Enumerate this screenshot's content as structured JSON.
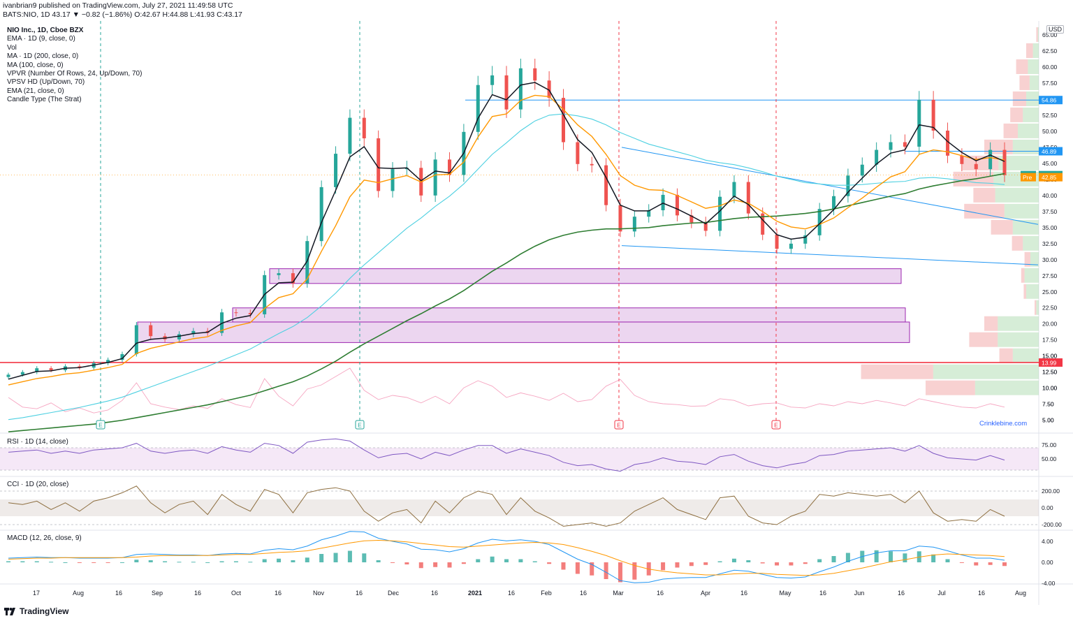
{
  "header": {
    "line1": "ivanbrian9 published on TradingView.com, July 27, 2021 11:49:58 UTC",
    "line2": "BATS:NIO, 1D  43.17 ▼ −0.82 (−1.86%) O:42.67 H:44.88 L:41.93 C:43.17"
  },
  "legend": [
    "NIO Inc., 1D, Cboe BZX",
    "EMA · 1D (9, close, 0)",
    "Vol",
    "MA · 1D (200, close, 0)",
    "MA (100, close, 0)",
    "VPVR (Number Of Rows, 24, Up/Down, 70)",
    "VPSV HD (Up/Down, 70)",
    "EMA (21, close, 0)",
    "Candle Type (The Strat)"
  ],
  "currency": "USD",
  "watermark": "Crinklebine.com",
  "footer": {
    "brand": "TradingView"
  },
  "panes": {
    "rsi": "RSI · 1D (14, close)",
    "cci": "CCI · 1D (20, close)",
    "macd": "MACD (12, 26, close, 9)"
  },
  "chart_data": {
    "type": "line",
    "symbol": "NIO",
    "price_axis": {
      "ticks": [
        "65.00",
        "62.50",
        "60.00",
        "57.50",
        "55.00",
        "52.50",
        "50.00",
        "47.50",
        "45.00",
        "42.50",
        "40.00",
        "37.50",
        "35.00",
        "32.50",
        "30.00",
        "27.50",
        "25.00",
        "22.50",
        "20.00",
        "17.50",
        "15.00",
        "12.50",
        "10.00",
        "7.50",
        "5.00"
      ],
      "badges": [
        {
          "label": "54.86",
          "value": 54.86,
          "color": "#2196f3"
        },
        {
          "label": "46.89",
          "value": 46.89,
          "color": "#2196f3"
        },
        {
          "label": "NIO",
          "value": 43.17,
          "color": "#26a69a",
          "text": "43.17"
        },
        {
          "label": "Pre",
          "value": 42.85,
          "color": "#ff9800",
          "text": "42.85"
        },
        {
          "label": "13.99",
          "value": 13.99,
          "color": "#f23645"
        }
      ]
    },
    "time_axis": [
      "17",
      "Aug",
      "16",
      "Sep",
      "16",
      "Oct",
      "16",
      "Nov",
      "16",
      "Dec",
      "16",
      "2021",
      "16",
      "Feb",
      "16",
      "Mar",
      "16",
      "Apr",
      "16",
      "May",
      "16",
      "Jun",
      "16",
      "Jul",
      "16",
      "Aug"
    ],
    "price_close": [
      12.1,
      12.5,
      13.1,
      12.8,
      13.4,
      13.2,
      13.9,
      14.4,
      15.3,
      19.8,
      18.1,
      17.6,
      18.4,
      18.9,
      18.6,
      21.8,
      21.7,
      21.5,
      27.6,
      27.9,
      26.3,
      32.9,
      41.3,
      46.5,
      52.1,
      48.9,
      40.7,
      44.1,
      44.3,
      40.0,
      45.6,
      43.2,
      49.9,
      57.2,
      58.7,
      53.4,
      59.8,
      57.9,
      55.2,
      48.3,
      44.9,
      44.7,
      38.5,
      34.4,
      36.7,
      37.7,
      40.1,
      36.9,
      35.8,
      34.5,
      39.8,
      42.1,
      37.2,
      33.9,
      31.7,
      32.5,
      33.8,
      37.9,
      39.9,
      43.1,
      44.8,
      47.1,
      48.3,
      47.6,
      54.9,
      50.1,
      46.2,
      44.9,
      44.1,
      47.1,
      43.17
    ],
    "ema9": [
      11.4,
      12.0,
      12.6,
      12.7,
      13.1,
      13.2,
      13.6,
      14.0,
      14.6,
      17.0,
      17.6,
      17.8,
      18.1,
      18.5,
      18.7,
      20.1,
      20.9,
      21.3,
      24.6,
      26.4,
      26.5,
      29.8,
      35.8,
      40.8,
      46.0,
      47.6,
      44.3,
      44.2,
      44.3,
      42.3,
      43.8,
      43.5,
      46.6,
      52.0,
      55.7,
      54.9,
      57.2,
      57.6,
      56.4,
      52.6,
      48.7,
      46.7,
      42.8,
      38.5,
      37.6,
      37.6,
      38.8,
      37.9,
      36.8,
      35.6,
      37.6,
      39.9,
      38.6,
      36.2,
      33.9,
      33.2,
      33.5,
      35.6,
      37.8,
      40.5,
      42.7,
      44.9,
      46.6,
      47.1,
      51.0,
      50.6,
      48.4,
      46.7,
      45.4,
      46.3,
      45.3
    ],
    "ema21": [
      10.5,
      11.0,
      11.5,
      11.8,
      12.2,
      12.4,
      12.8,
      13.2,
      13.7,
      15.4,
      16.2,
      16.7,
      17.2,
      17.7,
      18.0,
      19.0,
      19.7,
      20.2,
      22.4,
      24.1,
      24.7,
      27.0,
      31.3,
      35.3,
      39.8,
      42.4,
      42.0,
      42.6,
      43.1,
      42.1,
      43.2,
      43.3,
      45.2,
      49.1,
      52.3,
      52.7,
      54.8,
      55.6,
      55.4,
      53.4,
      51.0,
      49.2,
      46.4,
      43.1,
      41.6,
      40.9,
      40.8,
      40.0,
      39.0,
      38.0,
      38.4,
      39.3,
      38.8,
      37.5,
      36.0,
      35.1,
      34.8,
      35.5,
      36.5,
      38.1,
      39.6,
      41.3,
      42.9,
      43.7,
      46.4,
      47.1,
      46.8,
      46.2,
      45.6,
      45.9,
      45.5
    ],
    "ma100": [
      5.1,
      5.4,
      5.8,
      6.2,
      6.6,
      7.0,
      7.5,
      8.0,
      8.6,
      9.4,
      10.2,
      11.0,
      11.8,
      12.6,
      13.4,
      14.3,
      15.2,
      16.1,
      17.3,
      18.5,
      19.6,
      21.0,
      22.8,
      24.8,
      27.1,
      29.2,
      31.1,
      33.0,
      34.9,
      36.5,
      38.3,
      39.9,
      41.8,
      44.1,
      46.4,
      48.2,
      50.1,
      51.6,
      52.5,
      52.7,
      52.4,
      51.9,
      51.0,
      49.8,
      48.9,
      48.0,
      47.4,
      46.8,
      46.2,
      45.5,
      45.1,
      44.8,
      44.3,
      43.7,
      43.0,
      42.5,
      42.0,
      41.8,
      41.6,
      41.6,
      41.7,
      41.9,
      42.1,
      42.2,
      42.7,
      42.8,
      42.6,
      42.3,
      42.0,
      41.9,
      41.7
    ],
    "ma200": [
      3.2,
      3.4,
      3.6,
      3.8,
      4.0,
      4.2,
      4.4,
      4.7,
      5.0,
      5.4,
      5.8,
      6.2,
      6.6,
      7.0,
      7.4,
      7.9,
      8.4,
      8.9,
      9.6,
      10.3,
      11.0,
      11.9,
      13.0,
      14.2,
      15.6,
      16.9,
      18.1,
      19.3,
      20.5,
      21.6,
      22.8,
      23.9,
      25.2,
      26.7,
      28.2,
      29.5,
      30.9,
      32.1,
      33.1,
      33.8,
      34.3,
      34.6,
      34.8,
      34.8,
      34.9,
      35.0,
      35.3,
      35.5,
      35.7,
      35.8,
      36.1,
      36.4,
      36.6,
      36.7,
      36.8,
      37.0,
      37.2,
      37.5,
      37.9,
      38.4,
      38.9,
      39.4,
      39.9,
      40.3,
      41.0,
      41.5,
      41.9,
      42.3,
      42.6,
      43.0,
      43.4
    ],
    "rsi_axis": [
      "75.00",
      "50.00"
    ],
    "rsi": [
      62,
      64,
      66,
      60,
      64,
      60,
      66,
      68,
      70,
      78,
      64,
      60,
      64,
      66,
      60,
      72,
      66,
      62,
      78,
      74,
      60,
      80,
      84,
      86,
      82,
      66,
      52,
      58,
      60,
      50,
      62,
      56,
      66,
      74,
      74,
      60,
      68,
      62,
      56,
      44,
      38,
      40,
      32,
      28,
      40,
      44,
      52,
      46,
      44,
      40,
      54,
      58,
      46,
      38,
      34,
      40,
      44,
      56,
      58,
      64,
      66,
      68,
      70,
      64,
      74,
      60,
      52,
      50,
      48,
      56,
      48
    ],
    "cci_axis": [
      "200.00",
      "0.00",
      "-200.00"
    ],
    "cci": [
      60,
      40,
      80,
      -20,
      60,
      -40,
      80,
      120,
      180,
      260,
      60,
      -60,
      40,
      80,
      -80,
      160,
      40,
      -40,
      220,
      160,
      -60,
      180,
      220,
      240,
      200,
      -40,
      -160,
      -60,
      -20,
      -180,
      80,
      -60,
      120,
      200,
      160,
      -80,
      120,
      -40,
      -120,
      -220,
      -200,
      -180,
      -220,
      -180,
      -40,
      40,
      120,
      -20,
      -80,
      -140,
      120,
      140,
      -100,
      -180,
      -200,
      -100,
      -40,
      160,
      140,
      180,
      160,
      140,
      160,
      60,
      200,
      -60,
      -160,
      -140,
      -160,
      -20,
      -100
    ],
    "macd_axis": [
      "4.00",
      "0.00",
      "-4.00"
    ],
    "macd_line": [
      0.8,
      0.9,
      1.0,
      0.9,
      0.9,
      0.8,
      0.8,
      0.8,
      0.9,
      1.5,
      1.6,
      1.5,
      1.4,
      1.4,
      1.3,
      1.6,
      1.7,
      1.6,
      2.3,
      2.6,
      2.4,
      3.1,
      4.3,
      5.0,
      5.9,
      5.8,
      4.6,
      4.0,
      3.5,
      2.5,
      2.4,
      2.0,
      2.6,
      3.7,
      4.4,
      4.1,
      4.3,
      4.0,
      3.4,
      2.0,
      0.6,
      -0.4,
      -1.9,
      -3.5,
      -3.9,
      -3.8,
      -3.2,
      -3.0,
      -2.9,
      -2.9,
      -2.2,
      -1.5,
      -1.7,
      -2.3,
      -2.9,
      -3.0,
      -2.8,
      -1.8,
      -0.9,
      0.2,
      1.1,
      1.8,
      2.2,
      2.2,
      3.1,
      2.9,
      2.2,
      1.4,
      0.8,
      0.8,
      0.4
    ],
    "macd_signal": [
      0.6,
      0.7,
      0.8,
      0.8,
      0.9,
      0.9,
      0.9,
      0.9,
      0.9,
      1.0,
      1.2,
      1.3,
      1.3,
      1.3,
      1.3,
      1.4,
      1.5,
      1.5,
      1.7,
      1.9,
      2.0,
      2.2,
      2.7,
      3.2,
      3.7,
      4.1,
      4.2,
      4.1,
      3.9,
      3.6,
      3.3,
      3.0,
      2.9,
      3.1,
      3.3,
      3.5,
      3.7,
      3.8,
      3.7,
      3.4,
      2.8,
      2.1,
      1.3,
      0.3,
      -0.6,
      -1.3,
      -1.7,
      -2.0,
      -2.2,
      -2.4,
      -2.4,
      -2.2,
      -2.1,
      -2.1,
      -2.3,
      -2.4,
      -2.5,
      -2.4,
      -2.1,
      -1.6,
      -1.1,
      -0.5,
      0.1,
      0.5,
      1.0,
      1.4,
      1.6,
      1.5,
      1.4,
      1.3,
      1.1
    ],
    "volume_axis": [
      "15.00",
      "12.50",
      "10.00",
      "7.50",
      "5.00"
    ],
    "volume": [
      7.5,
      5.2,
      4.8,
      6.2,
      4.1,
      5.0,
      3.8,
      4.5,
      6.8,
      11.0,
      6.0,
      5.2,
      4.6,
      5.5,
      4.9,
      7.2,
      5.8,
      5.1,
      12.0,
      7.8,
      5.5,
      9.5,
      10.5,
      12.5,
      14.5,
      9.2,
      7.0,
      8.0,
      7.5,
      6.2,
      7.8,
      6.0,
      9.8,
      11.5,
      10.2,
      7.5,
      8.6,
      7.8,
      6.8,
      8.5,
      6.5,
      7.0,
      10.2,
      11.8,
      8.0,
      6.5,
      6.0,
      5.8,
      5.4,
      5.5,
      7.2,
      6.8,
      5.5,
      6.0,
      6.2,
      5.2,
      5.0,
      6.0,
      5.5,
      6.5,
      6.0,
      6.8,
      6.2,
      5.5,
      7.2,
      6.5,
      5.8,
      5.2,
      5.0,
      6.0,
      5.2
    ],
    "horizontal_lines": [
      {
        "value": 54.86,
        "color": "#2196f3"
      },
      {
        "value": 46.89,
        "color": "#2196f3"
      },
      {
        "value": 13.99,
        "color": "#f23645"
      }
    ],
    "zones": [
      {
        "from": 26.3,
        "to": 28.6,
        "color": "#ce93d8"
      },
      {
        "from": 20.3,
        "to": 22.5,
        "color": "#ce93d8"
      },
      {
        "from": 17.1,
        "to": 20.3,
        "color": "#ce93d8"
      }
    ],
    "earnings_markers": [
      "E",
      "E",
      "E",
      "E"
    ],
    "vpvr_bins": [
      {
        "price": 65.0,
        "up": 2,
        "down": 4
      },
      {
        "price": 62.5,
        "up": 14,
        "down": 16
      },
      {
        "price": 60.0,
        "up": 26,
        "down": 28
      },
      {
        "price": 57.5,
        "up": 22,
        "down": 24
      },
      {
        "price": 55.0,
        "up": 30,
        "down": 32
      },
      {
        "price": 52.5,
        "up": 38,
        "down": 30
      },
      {
        "price": 50.0,
        "up": 50,
        "down": 34
      },
      {
        "price": 47.5,
        "up": 62,
        "down": 68
      },
      {
        "price": 45.0,
        "up": 96,
        "down": 86
      },
      {
        "price": 42.5,
        "up": 108,
        "down": 96
      },
      {
        "price": 40.0,
        "up": 104,
        "down": 52
      },
      {
        "price": 37.5,
        "up": 82,
        "down": 96
      },
      {
        "price": 35.0,
        "up": 62,
        "down": 52
      },
      {
        "price": 32.5,
        "up": 38,
        "down": 26
      },
      {
        "price": 30.0,
        "up": 20,
        "down": 14
      },
      {
        "price": 27.5,
        "up": 34,
        "down": 8
      },
      {
        "price": 25.0,
        "up": 30,
        "down": 6
      },
      {
        "price": 22.5,
        "up": 6,
        "down": 4
      },
      {
        "price": 20.0,
        "up": 98,
        "down": 32
      },
      {
        "price": 17.5,
        "up": 98,
        "down": 68
      },
      {
        "price": 15.0,
        "up": 62,
        "down": 32
      },
      {
        "price": 12.5,
        "up": 252,
        "down": 172
      },
      {
        "price": 10.0,
        "up": 152,
        "down": 118
      }
    ],
    "grid": false,
    "legend_position": "top-left"
  }
}
